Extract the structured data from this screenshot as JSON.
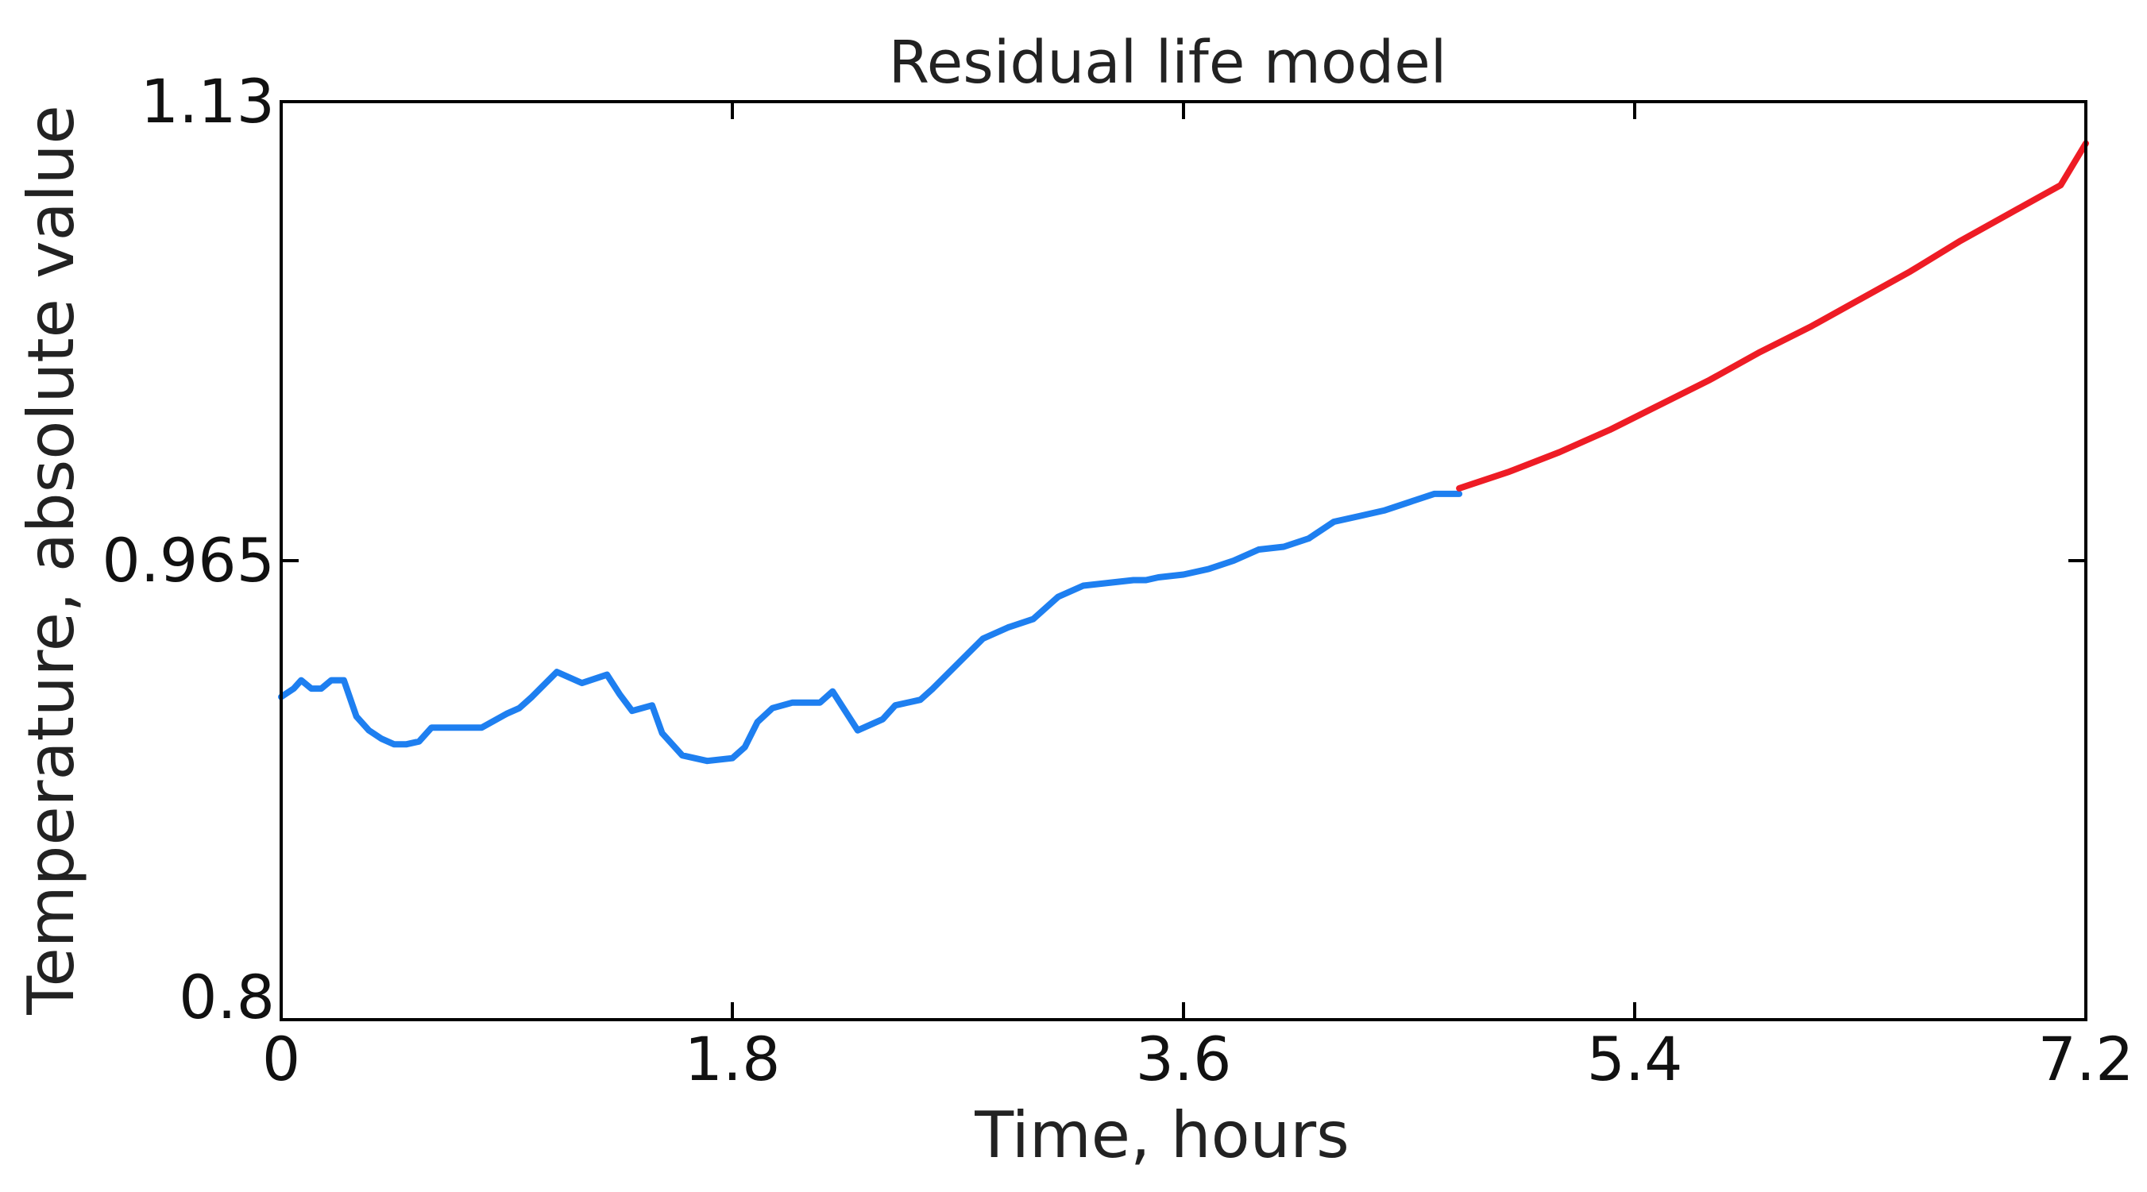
{
  "chart_data": {
    "type": "line",
    "title": "Residual life model",
    "xlabel": "Time, hours",
    "ylabel": "Temperature, absolute value",
    "xlim": [
      0,
      7.2
    ],
    "ylim": [
      0.8,
      1.13
    ],
    "xticks": [
      0,
      1.8,
      3.6,
      5.4,
      7.2
    ],
    "xtick_labels": [
      "0",
      "1.8",
      "3.6",
      "5.4",
      "7.2"
    ],
    "yticks": [
      0.8,
      0.965,
      1.13
    ],
    "ytick_labels": [
      "0.8",
      "0.965",
      "1.13"
    ],
    "grid": false,
    "legend": "none",
    "series": [
      {
        "color": "#1e7ff0",
        "x": [
          0,
          0.05,
          0.08,
          0.12,
          0.16,
          0.2,
          0.25,
          0.3,
          0.35,
          0.4,
          0.45,
          0.5,
          0.55,
          0.6,
          0.7,
          0.8,
          0.9,
          0.95,
          1.0,
          1.1,
          1.2,
          1.3,
          1.35,
          1.4,
          1.48,
          1.52,
          1.6,
          1.7,
          1.8,
          1.85,
          1.9,
          1.96,
          2.04,
          2.1,
          2.15,
          2.2,
          2.3,
          2.4,
          2.45,
          2.55,
          2.6,
          2.7,
          2.8,
          2.9,
          3.0,
          3.1,
          3.2,
          3.3,
          3.4,
          3.45,
          3.5,
          3.6,
          3.7,
          3.8,
          3.9,
          4.0,
          4.1,
          4.2,
          4.3,
          4.4,
          4.5,
          4.6,
          4.7
        ],
        "y": [
          0.916,
          0.919,
          0.922,
          0.919,
          0.919,
          0.922,
          0.922,
          0.909,
          0.904,
          0.901,
          0.899,
          0.899,
          0.9,
          0.905,
          0.905,
          0.905,
          0.91,
          0.912,
          0.916,
          0.925,
          0.921,
          0.924,
          0.917,
          0.911,
          0.913,
          0.903,
          0.895,
          0.893,
          0.894,
          0.898,
          0.907,
          0.912,
          0.914,
          0.914,
          0.914,
          0.918,
          0.904,
          0.908,
          0.913,
          0.915,
          0.919,
          0.928,
          0.937,
          0.941,
          0.944,
          0.952,
          0.956,
          0.957,
          0.958,
          0.958,
          0.959,
          0.96,
          0.962,
          0.965,
          0.969,
          0.97,
          0.973,
          0.979,
          0.981,
          0.983,
          0.986,
          0.989,
          0.989
        ]
      },
      {
        "color": "#ee1c25",
        "x": [
          4.7,
          4.9,
          5.1,
          5.3,
          5.5,
          5.7,
          5.9,
          6.1,
          6.3,
          6.5,
          6.7,
          6.9,
          7.1,
          7.2
        ],
        "y": [
          0.991,
          0.997,
          1.004,
          1.012,
          1.021,
          1.03,
          1.04,
          1.049,
          1.059,
          1.069,
          1.08,
          1.09,
          1.1,
          1.115
        ]
      }
    ]
  }
}
